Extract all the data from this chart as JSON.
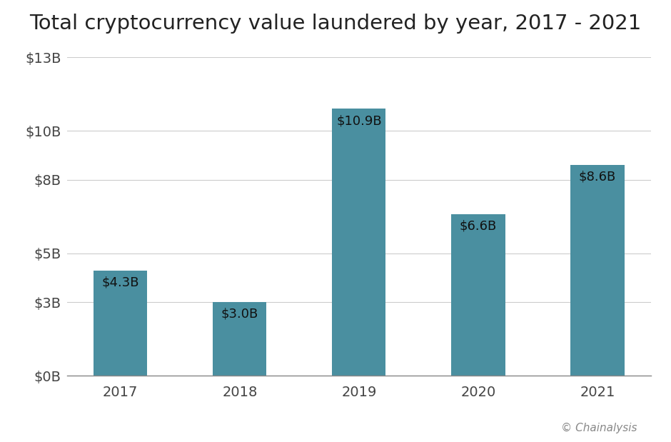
{
  "title": "Total cryptocurrency value laundered by year, 2017 - 2021",
  "categories": [
    "2017",
    "2018",
    "2019",
    "2020",
    "2021"
  ],
  "values": [
    4.3,
    3.0,
    10.9,
    6.6,
    8.6
  ],
  "labels": [
    "$4.3B",
    "$3.0B",
    "$10.9B",
    "$6.6B",
    "$8.6B"
  ],
  "bar_color": "#4a8fa0",
  "background_color": "#ffffff",
  "ylim": [
    0,
    13
  ],
  "yticks": [
    0,
    3,
    5,
    8,
    10,
    13
  ],
  "ytick_labels": [
    "$0B",
    "$3B",
    "$5B",
    "$8B",
    "$10B",
    "$13B"
  ],
  "title_fontsize": 21,
  "tick_fontsize": 14,
  "label_fontsize": 13,
  "watermark": "© Chainalysis",
  "bar_width": 0.45
}
